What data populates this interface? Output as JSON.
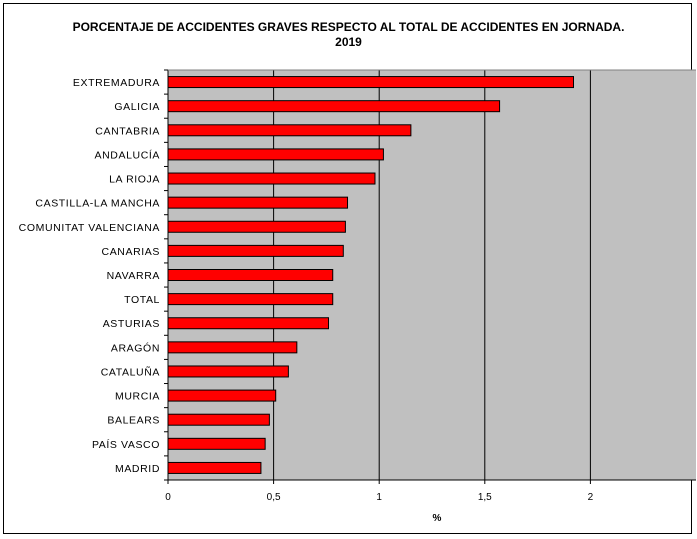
{
  "chart_data": {
    "type": "bar",
    "orientation": "horizontal",
    "title": "PORCENTAJE DE ACCIDENTES GRAVES RESPECTO AL TOTAL DE ACCIDENTES EN JORNADA.",
    "subtitle": "2019",
    "xlabel": "%",
    "ylabel": "",
    "xlim": [
      0,
      2.5
    ],
    "xticks": [
      "0",
      "0,5",
      "1",
      "1,5",
      "2"
    ],
    "categories": [
      "EXTREMADURA",
      "GALICIA",
      "CANTABRIA",
      "ANDALUCÍA",
      "LA RIOJA",
      "CASTILLA-LA MANCHA",
      "COMUNITAT VALENCIANA",
      "CANARIAS",
      "NAVARRA",
      "TOTAL",
      "ASTURIAS",
      "ARAGÓN",
      "CATALUÑA",
      "MURCIA",
      "BALEARS",
      "PAÍS VASCO",
      "MADRID"
    ],
    "values": [
      1.92,
      1.57,
      1.15,
      1.02,
      0.98,
      0.85,
      0.84,
      0.83,
      0.78,
      0.78,
      0.76,
      0.61,
      0.57,
      0.51,
      0.48,
      0.46,
      0.44
    ],
    "grid": "vertical major lines",
    "legend": "none",
    "colors": {
      "bar": "#ff0000",
      "bar_border": "#000000",
      "plot_bg": "#c0c0c0",
      "grid": "#000000"
    }
  }
}
